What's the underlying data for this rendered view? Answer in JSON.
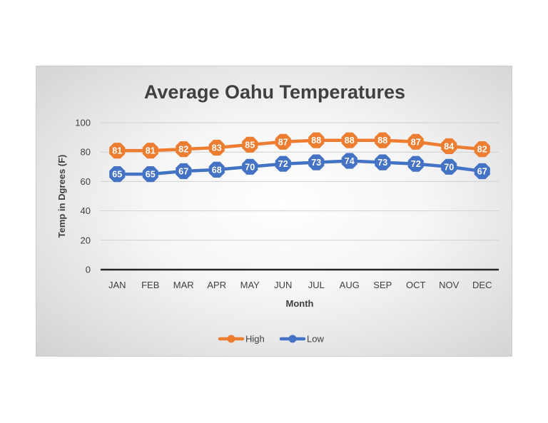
{
  "chart_data": {
    "type": "line",
    "title": "Average Oahu Temperatures",
    "xlabel": "Month",
    "ylabel": "Temp in Dgrees (F)",
    "categories": [
      "JAN",
      "FEB",
      "MAR",
      "APR",
      "MAY",
      "JUN",
      "JUL",
      "AUG",
      "SEP",
      "OCT",
      "NOV",
      "DEC"
    ],
    "ylim": [
      0,
      100
    ],
    "yticks": [
      0,
      20,
      40,
      60,
      80,
      100
    ],
    "grid": true,
    "legend_position": "bottom",
    "series": [
      {
        "name": "High",
        "color": "#ed7d31",
        "values": [
          81,
          81,
          82,
          83,
          85,
          87,
          88,
          88,
          88,
          87,
          84,
          82
        ]
      },
      {
        "name": "Low",
        "color": "#4472c4",
        "values": [
          65,
          65,
          67,
          68,
          70,
          72,
          73,
          74,
          73,
          72,
          70,
          67
        ]
      }
    ]
  }
}
